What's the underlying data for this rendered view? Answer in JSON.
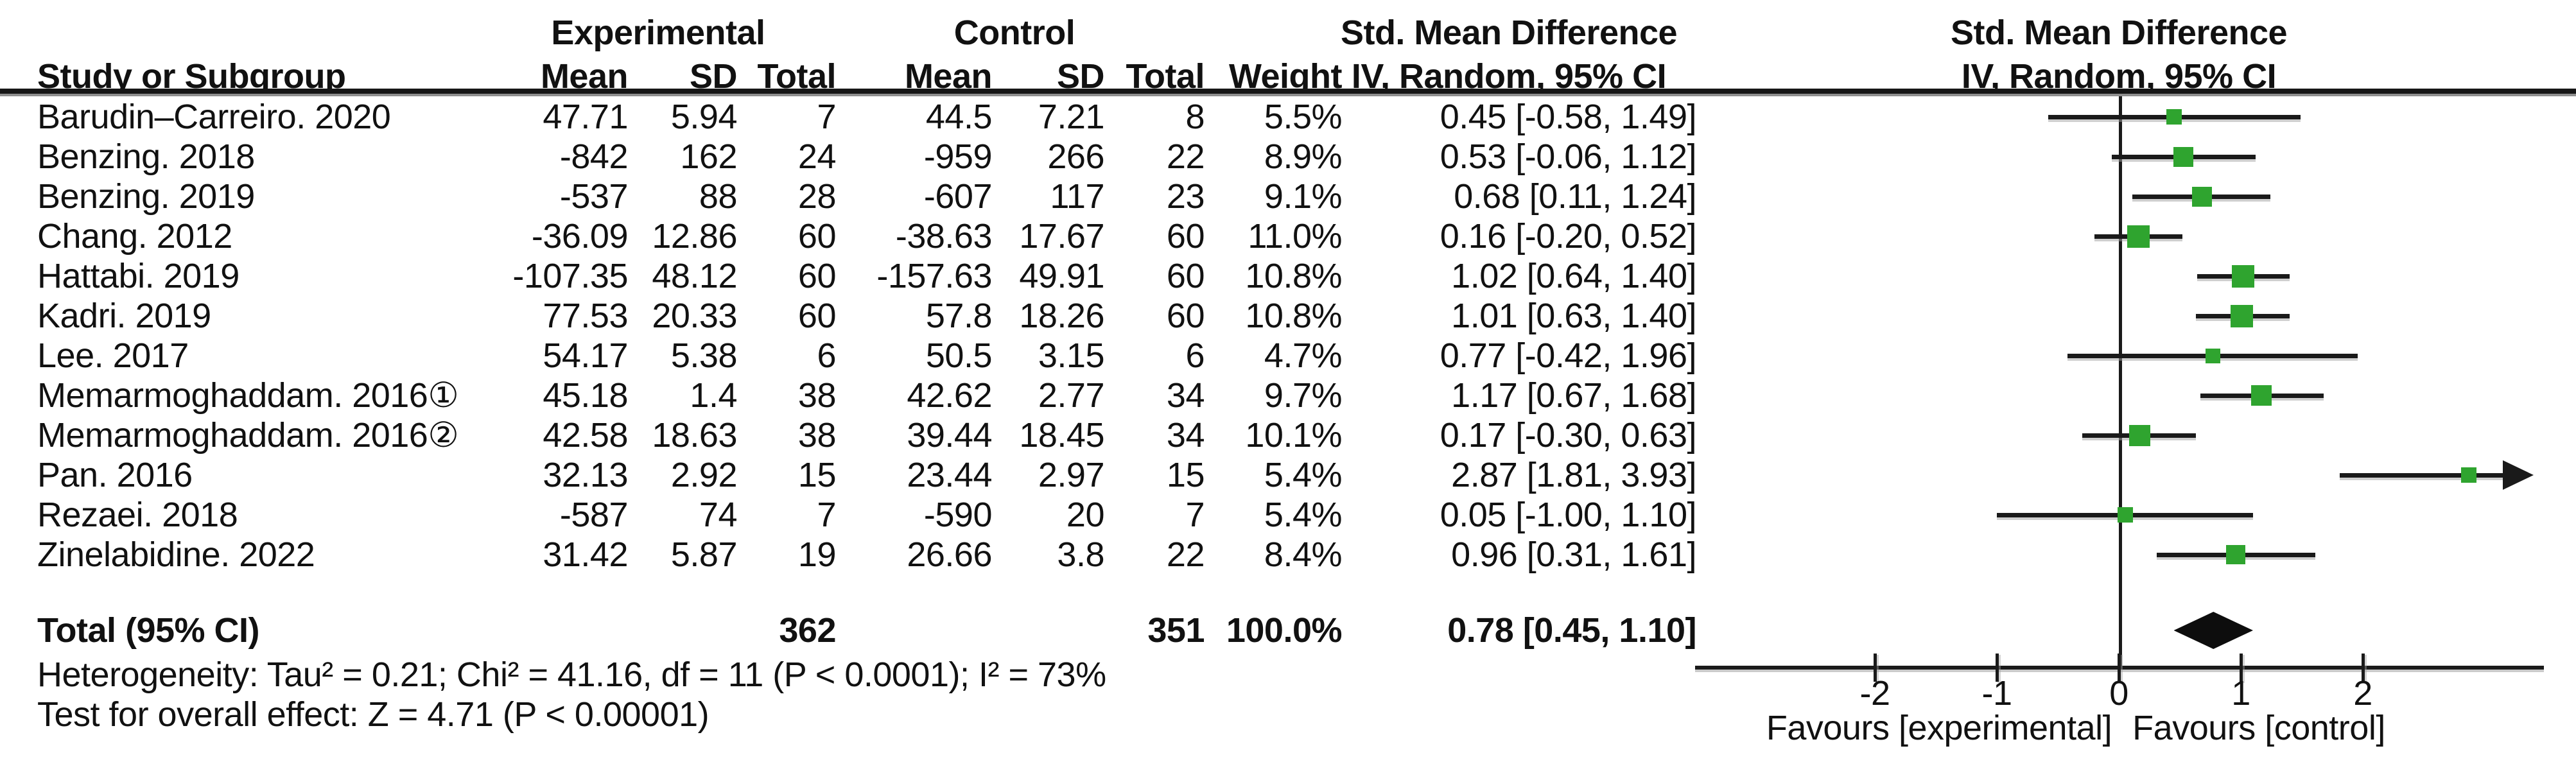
{
  "headers": {
    "group_experimental": "Experimental",
    "group_control": "Control",
    "smd_table": "Std. Mean Difference",
    "smd_plot": "Std. Mean Difference",
    "study": "Study or Subgroup",
    "mean": "Mean",
    "sd": "SD",
    "total": "Total",
    "weight": "Weight",
    "iv_table": "IV, Random, 95% CI",
    "iv_plot": "IV, Random, 95% CI"
  },
  "chart_data": {
    "type": "scatter",
    "variant": "forest-plot",
    "effect_measure": "Std. Mean Difference",
    "model": "IV, Random, 95% CI",
    "grid": false,
    "legend_position": "none",
    "studies": [
      {
        "name": "Barudin–Carreiro. 2020",
        "exp_mean": "47.71",
        "exp_sd": "5.94",
        "exp_total": "7",
        "ctrl_mean": "44.5",
        "ctrl_sd": "7.21",
        "ctrl_total": "8",
        "weight": "5.5%",
        "weight_pct": 5.5,
        "ci_text": "0.45 [-0.58, 1.49]",
        "est": 0.45,
        "lo": -0.58,
        "hi": 1.49
      },
      {
        "name": "Benzing. 2018",
        "exp_mean": "-842",
        "exp_sd": "162",
        "exp_total": "24",
        "ctrl_mean": "-959",
        "ctrl_sd": "266",
        "ctrl_total": "22",
        "weight": "8.9%",
        "weight_pct": 8.9,
        "ci_text": "0.53 [-0.06, 1.12]",
        "est": 0.53,
        "lo": -0.06,
        "hi": 1.12
      },
      {
        "name": "Benzing. 2019",
        "exp_mean": "-537",
        "exp_sd": "88",
        "exp_total": "28",
        "ctrl_mean": "-607",
        "ctrl_sd": "117",
        "ctrl_total": "23",
        "weight": "9.1%",
        "weight_pct": 9.1,
        "ci_text": "0.68 [0.11, 1.24]",
        "est": 0.68,
        "lo": 0.11,
        "hi": 1.24
      },
      {
        "name": "Chang. 2012",
        "exp_mean": "-36.09",
        "exp_sd": "12.86",
        "exp_total": "60",
        "ctrl_mean": "-38.63",
        "ctrl_sd": "17.67",
        "ctrl_total": "60",
        "weight": "11.0%",
        "weight_pct": 11.0,
        "ci_text": "0.16 [-0.20, 0.52]",
        "est": 0.16,
        "lo": -0.2,
        "hi": 0.52
      },
      {
        "name": "Hattabi. 2019",
        "exp_mean": "-107.35",
        "exp_sd": "48.12",
        "exp_total": "60",
        "ctrl_mean": "-157.63",
        "ctrl_sd": "49.91",
        "ctrl_total": "60",
        "weight": "10.8%",
        "weight_pct": 10.8,
        "ci_text": "1.02 [0.64, 1.40]",
        "est": 1.02,
        "lo": 0.64,
        "hi": 1.4
      },
      {
        "name": "Kadri. 2019",
        "exp_mean": "77.53",
        "exp_sd": "20.33",
        "exp_total": "60",
        "ctrl_mean": "57.8",
        "ctrl_sd": "18.26",
        "ctrl_total": "60",
        "weight": "10.8%",
        "weight_pct": 10.8,
        "ci_text": "1.01 [0.63, 1.40]",
        "est": 1.01,
        "lo": 0.63,
        "hi": 1.4
      },
      {
        "name": "Lee. 2017",
        "exp_mean": "54.17",
        "exp_sd": "5.38",
        "exp_total": "6",
        "ctrl_mean": "50.5",
        "ctrl_sd": "3.15",
        "ctrl_total": "6",
        "weight": "4.7%",
        "weight_pct": 4.7,
        "ci_text": "0.77 [-0.42, 1.96]",
        "est": 0.77,
        "lo": -0.42,
        "hi": 1.96
      },
      {
        "name": "Memarmoghaddam. 2016①",
        "exp_mean": "45.18",
        "exp_sd": "1.4",
        "exp_total": "38",
        "ctrl_mean": "42.62",
        "ctrl_sd": "2.77",
        "ctrl_total": "34",
        "weight": "9.7%",
        "weight_pct": 9.7,
        "ci_text": "1.17 [0.67, 1.68]",
        "est": 1.17,
        "lo": 0.67,
        "hi": 1.68
      },
      {
        "name": "Memarmoghaddam. 2016②",
        "exp_mean": "42.58",
        "exp_sd": "18.63",
        "exp_total": "38",
        "ctrl_mean": "39.44",
        "ctrl_sd": "18.45",
        "ctrl_total": "34",
        "weight": "10.1%",
        "weight_pct": 10.1,
        "ci_text": "0.17 [-0.30, 0.63]",
        "est": 0.17,
        "lo": -0.3,
        "hi": 0.63
      },
      {
        "name": "Pan. 2016",
        "exp_mean": "32.13",
        "exp_sd": "2.92",
        "exp_total": "15",
        "ctrl_mean": "23.44",
        "ctrl_sd": "2.97",
        "ctrl_total": "15",
        "weight": "5.4%",
        "weight_pct": 5.4,
        "ci_text": "2.87 [1.81, 3.93]",
        "est": 2.87,
        "lo": 1.81,
        "hi": 3.93
      },
      {
        "name": "Rezaei. 2018",
        "exp_mean": "-587",
        "exp_sd": "74",
        "exp_total": "7",
        "ctrl_mean": "-590",
        "ctrl_sd": "20",
        "ctrl_total": "7",
        "weight": "5.4%",
        "weight_pct": 5.4,
        "ci_text": "0.05 [-1.00, 1.10]",
        "est": 0.05,
        "lo": -1.0,
        "hi": 1.1
      },
      {
        "name": "Zinelabidine. 2022",
        "exp_mean": "31.42",
        "exp_sd": "5.87",
        "exp_total": "19",
        "ctrl_mean": "26.66",
        "ctrl_sd": "3.8",
        "ctrl_total": "22",
        "weight": "8.4%",
        "weight_pct": 8.4,
        "ci_text": "0.96 [0.31, 1.61]",
        "est": 0.96,
        "lo": 0.31,
        "hi": 1.61
      }
    ],
    "total": {
      "label": "Total (95% CI)",
      "exp_total": "362",
      "ctrl_total": "351",
      "weight": "100.0%",
      "ci_text": "0.78 [0.45, 1.10]",
      "est": 0.78,
      "lo": 0.45,
      "hi": 1.1
    },
    "heterogeneity": "Heterogeneity: Tau² = 0.21; Chi² = 41.16, df = 11 (P < 0.0001); I² = 73%",
    "overall_effect": "Test for overall effect: Z = 4.71 (P < 0.00001)",
    "x_axis": {
      "min": -3.5,
      "max": 3.5,
      "tick_labels": [
        "-2",
        "-1",
        "0",
        "1",
        "2"
      ],
      "tick_values": [
        -2,
        -1,
        0,
        1,
        2
      ],
      "favours_left": "Favours [experimental]",
      "favours_right": "Favours [control]"
    }
  },
  "colors": {
    "marker_green": "#2FA42F",
    "line_black": "#1A1A1A",
    "shadow_gray": "#ABABAB"
  }
}
